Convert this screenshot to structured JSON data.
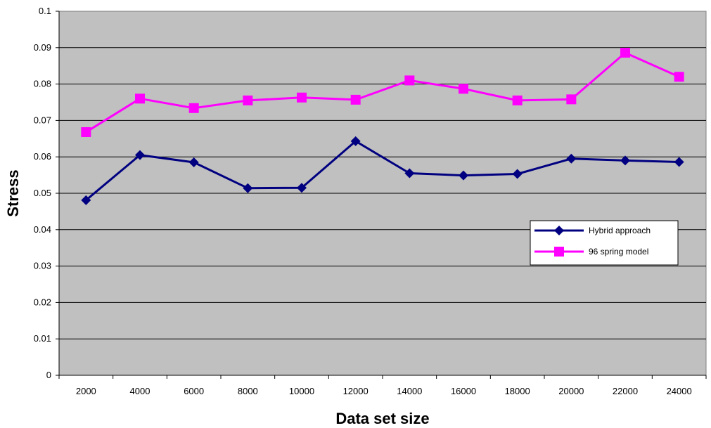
{
  "chart_data": {
    "type": "line",
    "categories": [
      "2000",
      "4000",
      "6000",
      "8000",
      "10000",
      "12000",
      "14000",
      "16000",
      "18000",
      "20000",
      "22000",
      "24000"
    ],
    "y_ticks": [
      "0",
      "0.01",
      "0.02",
      "0.03",
      "0.04",
      "0.05",
      "0.06",
      "0.07",
      "0.08",
      "0.09",
      "0.1"
    ],
    "ylim": [
      0,
      0.1
    ],
    "xlabel": "Data set size",
    "ylabel": "Stress",
    "grid": true,
    "legend_position": "right",
    "plot_background": "#c0c0c0",
    "series": [
      {
        "name": "Hybrid approach",
        "color": "#000080",
        "marker": "diamond",
        "values": [
          0.0481,
          0.0605,
          0.0585,
          0.0514,
          0.0515,
          0.0643,
          0.0555,
          0.0549,
          0.0553,
          0.0595,
          0.059,
          0.0586
        ]
      },
      {
        "name": "96 spring model",
        "color": "#ff00ff",
        "marker": "square",
        "values": [
          0.0668,
          0.076,
          0.0734,
          0.0755,
          0.0763,
          0.0757,
          0.081,
          0.0787,
          0.0755,
          0.0758,
          0.0886,
          0.082
        ]
      }
    ]
  }
}
